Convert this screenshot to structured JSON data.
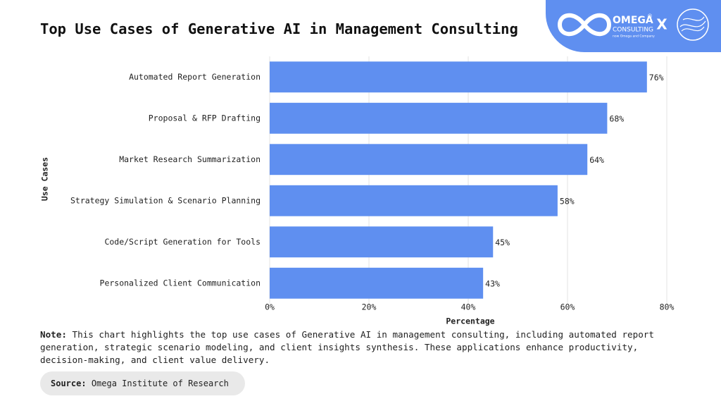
{
  "chart_data": {
    "type": "hbar",
    "title": "Top Use Cases of Generative AI in Management Consulting",
    "categories": [
      "Automated Report Generation",
      "Proposal & RFP Drafting",
      "Market Research Summarization",
      "Strategy Simulation & Scenario Planning",
      "Code/Script Generation for Tools",
      "Personalized Client Communication"
    ],
    "values": [
      76,
      68,
      64,
      58,
      45,
      43
    ],
    "value_labels": [
      "76%",
      "68%",
      "64%",
      "58%",
      "45%",
      "43%"
    ],
    "color": "#5f8ff0",
    "xlim": [
      0,
      80
    ],
    "xticks": [
      {
        "value": 0,
        "label": "0%"
      },
      {
        "value": 20,
        "label": "20%"
      },
      {
        "value": 40,
        "label": "40%"
      },
      {
        "value": 60,
        "label": "60%"
      },
      {
        "value": 80,
        "label": "80%"
      }
    ],
    "xlabel": "Percentage",
    "ylabel": "Use Cases",
    "grid": true
  },
  "note": {
    "label": "Note:",
    "text": "This chart highlights the top use cases of Generative AI in management consulting, including automated report generation, strategic scenario modeling, and client insights synthesis. These applications enhance productivity, decision-making, and client value delivery."
  },
  "source": {
    "label": "Source:",
    "text": "Omega Institute of Research"
  },
  "logo": {
    "name": "OMEGA",
    "mark": "®",
    "sub": "CONSULTING",
    "tagline": "now Omega and Company",
    "separator": "X"
  }
}
